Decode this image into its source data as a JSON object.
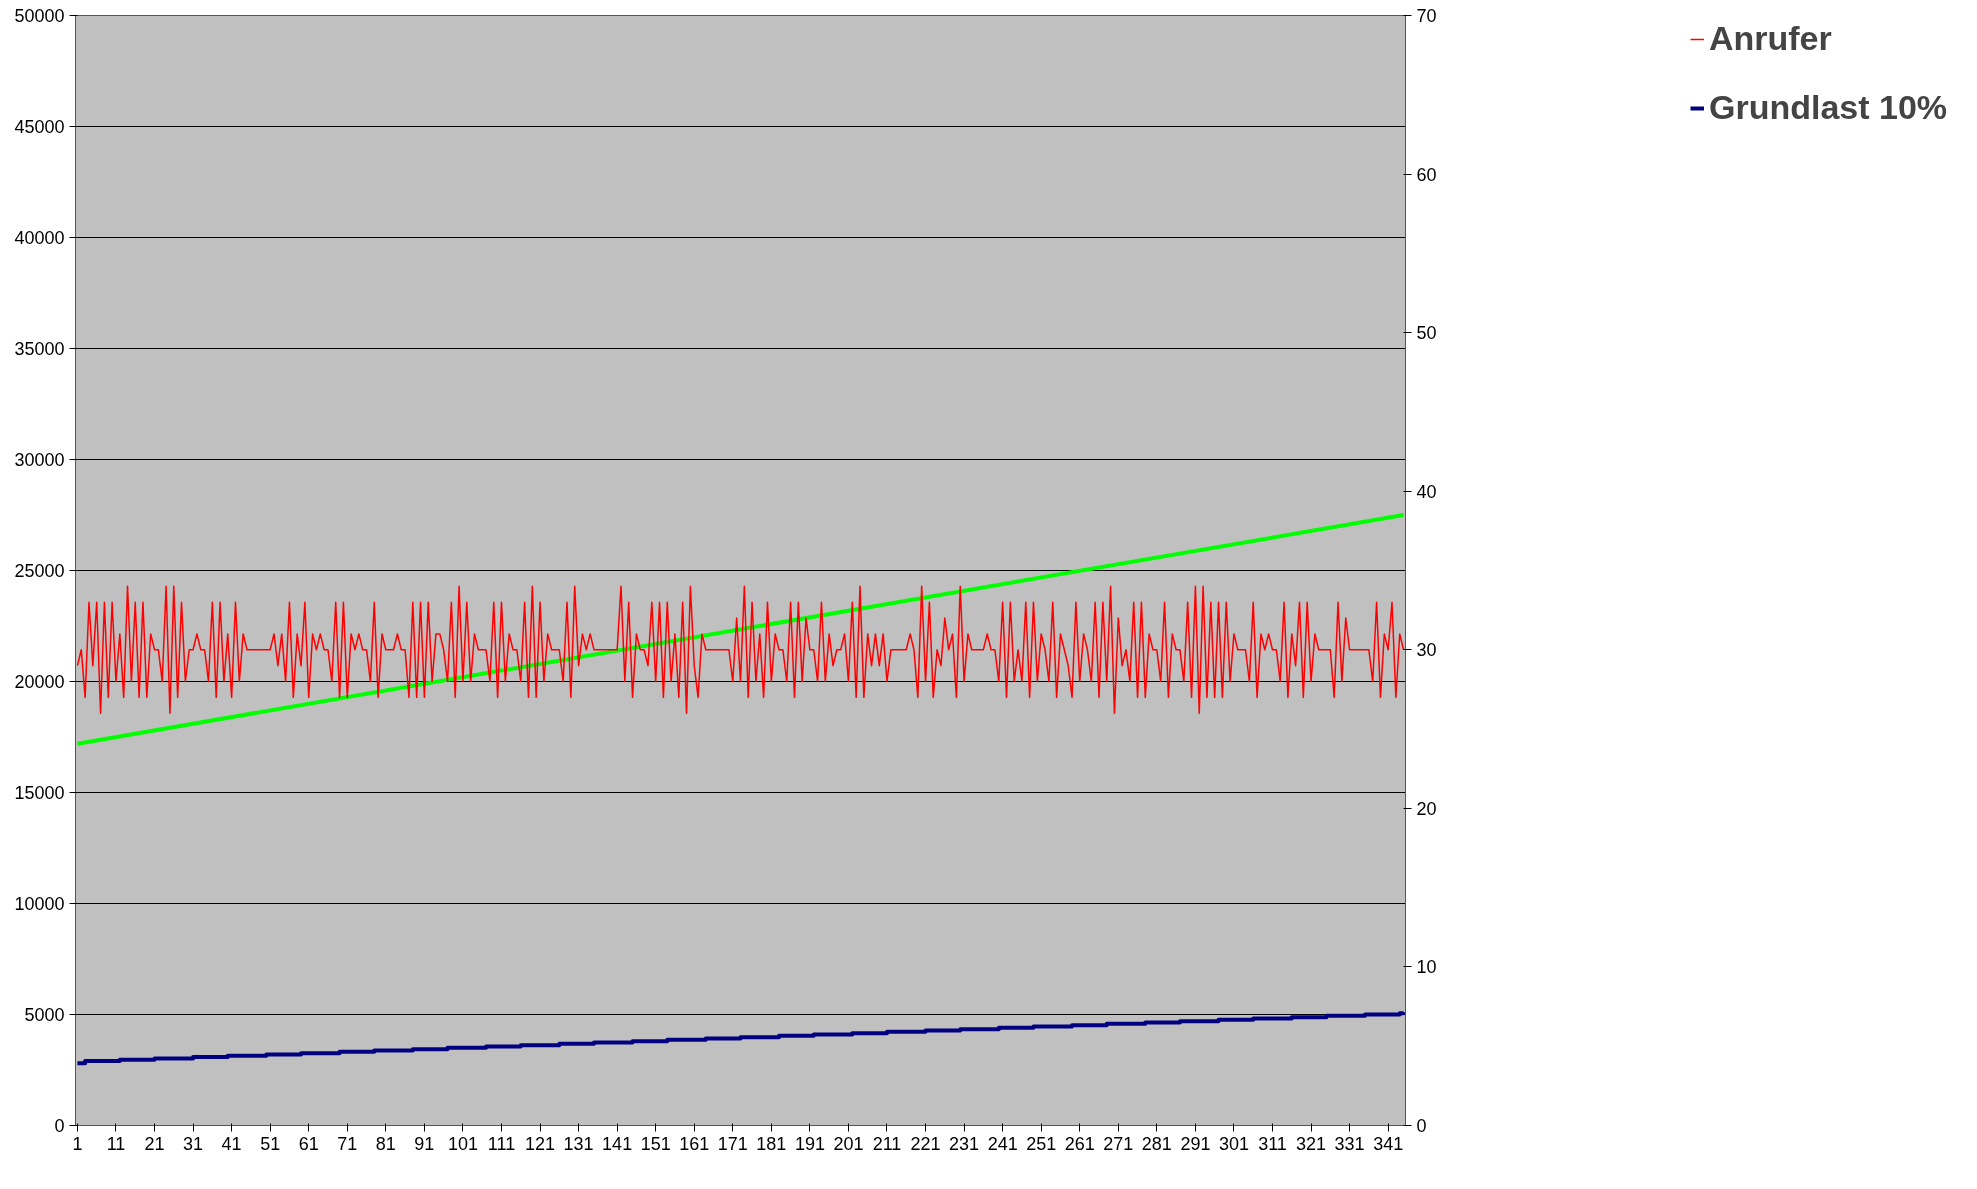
{
  "chart_data": {
    "type": "line",
    "x": [
      1,
      2,
      3,
      4,
      5,
      6,
      7,
      8,
      9,
      10,
      11,
      12,
      13,
      14,
      15,
      16,
      17,
      18,
      19,
      20,
      21,
      22,
      23,
      24,
      25,
      26,
      27,
      28,
      29,
      30,
      31,
      32,
      33,
      34,
      35,
      36,
      37,
      38,
      39,
      40,
      41,
      42,
      43,
      44,
      45,
      46,
      47,
      48,
      49,
      50,
      51,
      52,
      53,
      54,
      55,
      56,
      57,
      58,
      59,
      60,
      61,
      62,
      63,
      64,
      65,
      66,
      67,
      68,
      69,
      70,
      71,
      72,
      73,
      74,
      75,
      76,
      77,
      78,
      79,
      80,
      81,
      82,
      83,
      84,
      85,
      86,
      87,
      88,
      89,
      90,
      91,
      92,
      93,
      94,
      95,
      96,
      97,
      98,
      99,
      100,
      101,
      102,
      103,
      104,
      105,
      106,
      107,
      108,
      109,
      110,
      111,
      112,
      113,
      114,
      115,
      116,
      117,
      118,
      119,
      120,
      121,
      122,
      123,
      124,
      125,
      126,
      127,
      128,
      129,
      130,
      131,
      132,
      133,
      134,
      135,
      136,
      137,
      138,
      139,
      140,
      141,
      142,
      143,
      144,
      145,
      146,
      147,
      148,
      149,
      150,
      151,
      152,
      153,
      154,
      155,
      156,
      157,
      158,
      159,
      160,
      161,
      162,
      163,
      164,
      165,
      166,
      167,
      168,
      169,
      170,
      171,
      172,
      173,
      174,
      175,
      176,
      177,
      178,
      179,
      180,
      181,
      182,
      183,
      184,
      185,
      186,
      187,
      188,
      189,
      190,
      191,
      192,
      193,
      194,
      195,
      196,
      197,
      198,
      199,
      200,
      201,
      202,
      203,
      204,
      205,
      206,
      207,
      208,
      209,
      210,
      211,
      212,
      213,
      214,
      215,
      216,
      217,
      218,
      219,
      220,
      221,
      222,
      223,
      224,
      225,
      226,
      227,
      228,
      229,
      230,
      231,
      232,
      233,
      234,
      235,
      236,
      237,
      238,
      239,
      240,
      241,
      242,
      243,
      244,
      245,
      246,
      247,
      248,
      249,
      250,
      251,
      252,
      253,
      254,
      255,
      256,
      257,
      258,
      259,
      260,
      261,
      262,
      263,
      264,
      265,
      266,
      267,
      268,
      269,
      270,
      271,
      272,
      273,
      274,
      275,
      276,
      277,
      278,
      279,
      280,
      281,
      282,
      283,
      284,
      285,
      286,
      287,
      288,
      289,
      290,
      291,
      292,
      293,
      294,
      295,
      296,
      297,
      298,
      299,
      300,
      301,
      302,
      303,
      304,
      305,
      306,
      307,
      308,
      309,
      310,
      311,
      312,
      313,
      314,
      315,
      316,
      317,
      318,
      319,
      320,
      321,
      322,
      323,
      324,
      325,
      326,
      327,
      328,
      329,
      330,
      331,
      332,
      333,
      334,
      335,
      336,
      337,
      338,
      339,
      340,
      341,
      342,
      343,
      344,
      345
    ],
    "series": [
      {
        "name": "Anrufer",
        "color": "#ff0000",
        "axis": "y2",
        "values": [
          29,
          30,
          27,
          33,
          29,
          33,
          26,
          33,
          27,
          33,
          28,
          31,
          27,
          34,
          28,
          33,
          27,
          33,
          27,
          31,
          30,
          30,
          28,
          34,
          26,
          34,
          27,
          33,
          28,
          30,
          30,
          31,
          30,
          30,
          28,
          33,
          27,
          33,
          28,
          31,
          27,
          33,
          28,
          31,
          30,
          30,
          30,
          30,
          30,
          30,
          30,
          31,
          29,
          31,
          28,
          33,
          27,
          31,
          29,
          33,
          27,
          31,
          30,
          31,
          30,
          30,
          28,
          33,
          27,
          33,
          27,
          31,
          30,
          31,
          30,
          30,
          28,
          33,
          27,
          31,
          30,
          30,
          30,
          31,
          30,
          30,
          27,
          33,
          27,
          33,
          27,
          33,
          28,
          31,
          31,
          30,
          28,
          33,
          27,
          34,
          28,
          33,
          28,
          31,
          30,
          30,
          30,
          28,
          33,
          27,
          33,
          28,
          31,
          30,
          30,
          28,
          33,
          27,
          34,
          27,
          33,
          28,
          31,
          30,
          30,
          30,
          28,
          33,
          27,
          34,
          29,
          31,
          30,
          31,
          30,
          30,
          30,
          30,
          30,
          30,
          30,
          34,
          28,
          33,
          27,
          31,
          30,
          30,
          29,
          33,
          28,
          33,
          27,
          33,
          28,
          31,
          27,
          33,
          26,
          34,
          29,
          27,
          31,
          30,
          30,
          30,
          30,
          30,
          30,
          30,
          28,
          32,
          28,
          34,
          27,
          33,
          28,
          31,
          27,
          33,
          28,
          31,
          30,
          30,
          28,
          33,
          27,
          33,
          28,
          32,
          30,
          30,
          28,
          33,
          28,
          31,
          29,
          30,
          30,
          31,
          28,
          33,
          27,
          34,
          27,
          31,
          29,
          31,
          29,
          31,
          28,
          30,
          30,
          30,
          30,
          30,
          31,
          30,
          27,
          34,
          28,
          33,
          27,
          30,
          29,
          32,
          30,
          31,
          27,
          34,
          28,
          31,
          30,
          30,
          30,
          30,
          31,
          30,
          30,
          28,
          33,
          27,
          33,
          28,
          30,
          28,
          33,
          27,
          33,
          28,
          31,
          30,
          28,
          33,
          27,
          31,
          30,
          29,
          27,
          33,
          28,
          31,
          30,
          28,
          33,
          27,
          33,
          28,
          34,
          26,
          32,
          29,
          30,
          28,
          33,
          27,
          33,
          27,
          31,
          30,
          30,
          28,
          33,
          27,
          31,
          30,
          30,
          28,
          33,
          27,
          34,
          26,
          34,
          27,
          33,
          27,
          33,
          27,
          33,
          28,
          31,
          30,
          30,
          30,
          28,
          33,
          27,
          31,
          30,
          31,
          30,
          30,
          28,
          33,
          27,
          31,
          29,
          33,
          27,
          33,
          28,
          31,
          30,
          30,
          30,
          30,
          27,
          33,
          28,
          32,
          30,
          30,
          30,
          30,
          30,
          30,
          28,
          33,
          27,
          31,
          30,
          33,
          27,
          31,
          30
        ]
      },
      {
        "name": "Grundlast 10%",
        "color": "#000080",
        "type": "step",
        "x": [
          1,
          3,
          12,
          21,
          31,
          40,
          50,
          59,
          69,
          78,
          88,
          97,
          107,
          116,
          126,
          135,
          145,
          154,
          164,
          173,
          183,
          192,
          202,
          211,
          221,
          230,
          240,
          249,
          259,
          268,
          278,
          287,
          297,
          306,
          316,
          325,
          335,
          344,
          345
        ],
        "values": [
          2800,
          2900,
          2960,
          3020,
          3080,
          3140,
          3200,
          3260,
          3320,
          3380,
          3440,
          3500,
          3560,
          3620,
          3680,
          3740,
          3800,
          3860,
          3920,
          3980,
          4040,
          4100,
          4160,
          4220,
          4280,
          4340,
          4400,
          4460,
          4520,
          4580,
          4640,
          4700,
          4760,
          4820,
          4880,
          4940,
          5000,
          5060,
          5100
        ]
      },
      {
        "color": "#00ff00",
        "x": [
          1,
          345
        ],
        "values": [
          17200,
          27500
        ]
      }
    ],
    "xlim": [
      0.5,
      345.5
    ],
    "xticks": [
      1,
      11,
      21,
      31,
      41,
      51,
      61,
      71,
      81,
      91,
      101,
      111,
      121,
      131,
      141,
      151,
      161,
      171,
      181,
      191,
      201,
      211,
      221,
      231,
      241,
      251,
      261,
      271,
      281,
      291,
      301,
      311,
      321,
      331,
      341
    ],
    "ylim": [
      0,
      50000
    ],
    "yticks": [
      0,
      5000,
      10000,
      15000,
      20000,
      25000,
      30000,
      35000,
      40000,
      45000,
      50000
    ],
    "y2lim": [
      0,
      70
    ],
    "y2ticks": [
      0,
      10,
      20,
      30,
      40,
      50,
      60,
      70
    ],
    "grid": "y",
    "legend": "top right",
    "marker": "none",
    "line_style": "solid"
  }
}
